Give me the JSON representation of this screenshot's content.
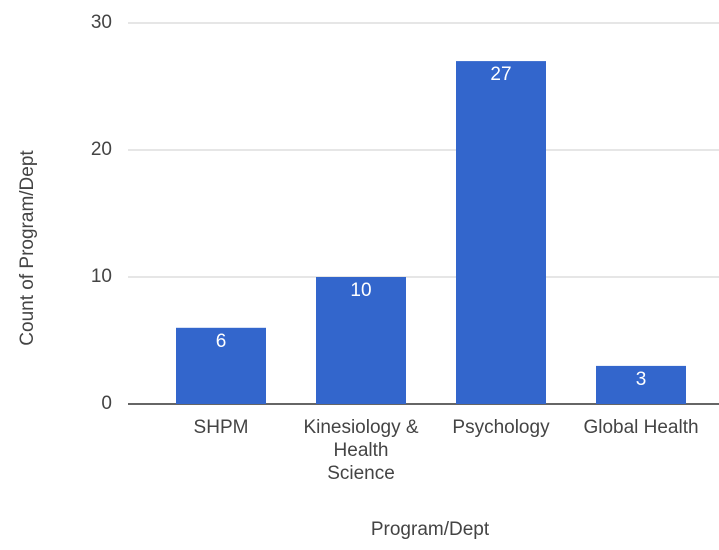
{
  "chart_data": {
    "type": "bar",
    "categories": [
      "SHPM",
      "Kinesiology & Health Science",
      "Psychology",
      "Global Health"
    ],
    "values": [
      6,
      10,
      27,
      3
    ],
    "color": "#3366cc",
    "xlabel": "Program/Dept",
    "ylabel": "Count of Program/Dept",
    "ylim": [
      0,
      30
    ],
    "yticks": [
      0,
      10,
      20,
      30
    ],
    "grid": true,
    "data_labels": true
  }
}
